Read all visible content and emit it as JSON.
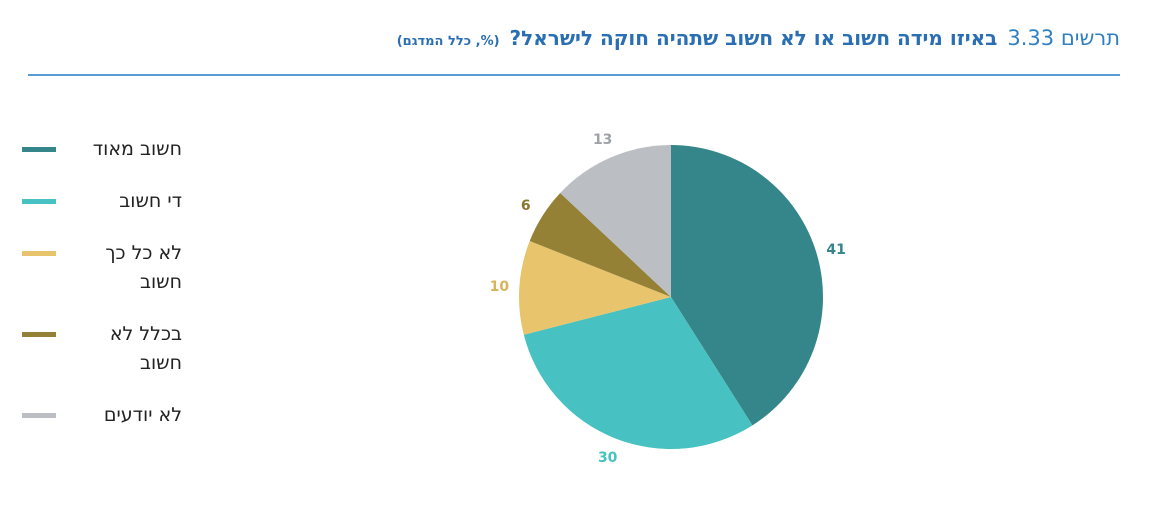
{
  "header": {
    "figure_label": "תרשים 3.33",
    "title": "באיזו מידה חשוב או לא חשוב שתהיה חוקה לישראל?",
    "subtitle": "(%, כלל המדגם)"
  },
  "chart_data": {
    "type": "pie",
    "title": "באיזו מידה חשוב או לא חשוב שתהיה חוקה לישראל?",
    "legend_position": "left",
    "categories": [
      "חשוב מאוד",
      "די חשוב",
      "לא כל כך חשוב",
      "בכלל לא חשוב",
      "לא יודעים"
    ],
    "values": [
      41,
      30,
      10,
      6,
      13
    ],
    "colors": [
      "#35868a",
      "#47c1c1",
      "#e8c46c",
      "#958136",
      "#bbbfc3"
    ],
    "label_colors": [
      "#35868a",
      "#47c1c1",
      "#d9b25a",
      "#8a7630",
      "#9fa3a7"
    ]
  }
}
